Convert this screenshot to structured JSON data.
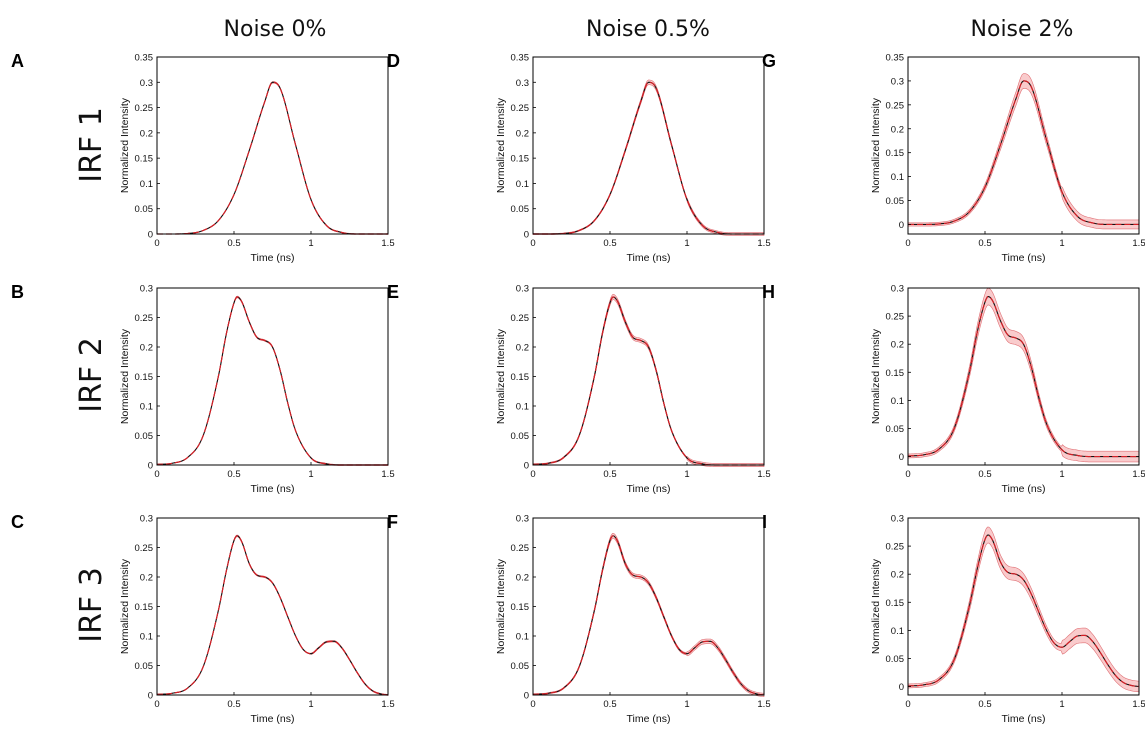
{
  "column_titles": [
    "Noise 0%",
    "Noise 0.5%",
    "Noise 2%"
  ],
  "row_titles": [
    "IRF 1",
    "IRF 2",
    "IRF 3"
  ],
  "chart_data": [
    {
      "panel": "A",
      "type": "line",
      "xlabel": "Time (ns)",
      "ylabel": "Normalized Intensity",
      "xlim": [
        0,
        1.5
      ],
      "ylim": [
        0,
        0.35
      ],
      "xticks": [
        "0",
        "0.5",
        "1",
        "1.5"
      ],
      "yticks": [
        "0",
        "0.05",
        "0.1",
        "0.15",
        "0.2",
        "0.25",
        "0.3",
        "0.35"
      ],
      "x": [
        0,
        0.1,
        0.2,
        0.3,
        0.4,
        0.5,
        0.6,
        0.7,
        0.75,
        0.8,
        0.9,
        1.0,
        1.1,
        1.2,
        1.3,
        1.4,
        1.5
      ],
      "y": [
        0,
        0,
        0.001,
        0.007,
        0.027,
        0.078,
        0.166,
        0.262,
        0.3,
        0.288,
        0.176,
        0.068,
        0.017,
        0.003,
        0,
        0,
        0
      ],
      "band_halfwidth": 0.001
    },
    {
      "panel": "B",
      "type": "line",
      "xlabel": "Time (ns)",
      "ylabel": "Normalized Intensity",
      "xlim": [
        0,
        1.5
      ],
      "ylim": [
        0,
        0.3
      ],
      "xticks": [
        "0",
        "0.5",
        "1",
        "1.5"
      ],
      "yticks": [
        "0",
        "0.05",
        "0.1",
        "0.15",
        "0.2",
        "0.25",
        "0.3"
      ],
      "x": [
        0,
        0.1,
        0.2,
        0.3,
        0.4,
        0.45,
        0.5,
        0.52,
        0.55,
        0.6,
        0.65,
        0.7,
        0.75,
        0.8,
        0.85,
        0.9,
        1.0,
        1.1,
        1.2,
        1.3,
        1.4,
        1.5
      ],
      "y": [
        0.001,
        0.003,
        0.013,
        0.05,
        0.152,
        0.222,
        0.275,
        0.285,
        0.277,
        0.242,
        0.216,
        0.211,
        0.2,
        0.16,
        0.104,
        0.058,
        0.012,
        0.002,
        0,
        0,
        0,
        0
      ],
      "band_halfwidth": 0.001
    },
    {
      "panel": "C",
      "type": "line",
      "xlabel": "Time (ns)",
      "ylabel": "Normalized Intensity",
      "xlim": [
        0,
        1.5
      ],
      "ylim": [
        0,
        0.3
      ],
      "xticks": [
        "0",
        "0.5",
        "1",
        "1.5"
      ],
      "yticks": [
        "0",
        "0.05",
        "0.1",
        "0.15",
        "0.2",
        "0.25",
        "0.3"
      ],
      "x": [
        0,
        0.1,
        0.2,
        0.3,
        0.4,
        0.45,
        0.5,
        0.52,
        0.55,
        0.6,
        0.65,
        0.7,
        0.75,
        0.8,
        0.85,
        0.9,
        0.95,
        1.0,
        1.05,
        1.1,
        1.15,
        1.2,
        1.25,
        1.3,
        1.35,
        1.4,
        1.45,
        1.5
      ],
      "y": [
        0.001,
        0.003,
        0.012,
        0.048,
        0.145,
        0.21,
        0.262,
        0.27,
        0.26,
        0.222,
        0.203,
        0.2,
        0.19,
        0.165,
        0.132,
        0.1,
        0.077,
        0.07,
        0.08,
        0.09,
        0.091,
        0.08,
        0.06,
        0.038,
        0.019,
        0.007,
        0.002,
        0
      ],
      "band_halfwidth": 0.001
    },
    {
      "panel": "D",
      "type": "line",
      "xlabel": "Time (ns)",
      "ylabel": "Normalized Intensity",
      "xlim": [
        0,
        1.5
      ],
      "ylim": [
        0,
        0.35
      ],
      "xticks": [
        "0",
        "0.5",
        "1",
        "1.5"
      ],
      "yticks": [
        "0",
        "0.05",
        "0.1",
        "0.15",
        "0.2",
        "0.25",
        "0.3",
        "0.35"
      ],
      "x": [
        0,
        0.1,
        0.2,
        0.3,
        0.4,
        0.5,
        0.6,
        0.7,
        0.75,
        0.8,
        0.9,
        1.0,
        1.1,
        1.2,
        1.3,
        1.4,
        1.5
      ],
      "y": [
        0,
        0,
        0.001,
        0.007,
        0.027,
        0.078,
        0.166,
        0.262,
        0.3,
        0.288,
        0.176,
        0.068,
        0.017,
        0.003,
        0,
        0,
        0
      ],
      "band_halfwidth": 0.003
    },
    {
      "panel": "E",
      "type": "line",
      "xlabel": "Time (ns)",
      "ylabel": "Normalized Intensity",
      "xlim": [
        0,
        1.5
      ],
      "ylim": [
        0,
        0.3
      ],
      "xticks": [
        "0",
        "0.5",
        "1",
        "1.5"
      ],
      "yticks": [
        "0",
        "0.05",
        "0.1",
        "0.15",
        "0.2",
        "0.25",
        "0.3"
      ],
      "x": [
        0,
        0.1,
        0.2,
        0.3,
        0.4,
        0.45,
        0.5,
        0.52,
        0.55,
        0.6,
        0.65,
        0.7,
        0.75,
        0.8,
        0.85,
        0.9,
        1.0,
        1.1,
        1.2,
        1.3,
        1.4,
        1.5
      ],
      "y": [
        0.001,
        0.003,
        0.013,
        0.05,
        0.152,
        0.222,
        0.275,
        0.285,
        0.277,
        0.242,
        0.216,
        0.211,
        0.2,
        0.16,
        0.104,
        0.058,
        0.012,
        0.002,
        0,
        0,
        0,
        0
      ],
      "band_halfwidth": 0.003
    },
    {
      "panel": "F",
      "type": "line",
      "xlabel": "Time (ns)",
      "ylabel": "Normalized Intensity",
      "xlim": [
        0,
        1.5
      ],
      "ylim": [
        0,
        0.3
      ],
      "xticks": [
        "0",
        "0.5",
        "1",
        "1.5"
      ],
      "yticks": [
        "0",
        "0.05",
        "0.1",
        "0.15",
        "0.2",
        "0.25",
        "0.3"
      ],
      "x": [
        0,
        0.1,
        0.2,
        0.3,
        0.4,
        0.45,
        0.5,
        0.52,
        0.55,
        0.6,
        0.65,
        0.7,
        0.75,
        0.8,
        0.85,
        0.9,
        0.95,
        1.0,
        1.05,
        1.1,
        1.15,
        1.2,
        1.25,
        1.3,
        1.35,
        1.4,
        1.45,
        1.5
      ],
      "y": [
        0.001,
        0.003,
        0.012,
        0.048,
        0.145,
        0.21,
        0.262,
        0.27,
        0.26,
        0.222,
        0.203,
        0.2,
        0.19,
        0.165,
        0.132,
        0.1,
        0.077,
        0.07,
        0.08,
        0.09,
        0.091,
        0.08,
        0.06,
        0.038,
        0.019,
        0.007,
        0.002,
        0
      ],
      "band_halfwidth": 0.003
    },
    {
      "panel": "G",
      "type": "line",
      "xlabel": "Time (ns)",
      "ylabel": "Normalized Intensity",
      "xlim": [
        0,
        1.5
      ],
      "ylim": [
        -0.02,
        0.35
      ],
      "xticks": [
        "0",
        "0.5",
        "1",
        "1.5"
      ],
      "yticks": [
        "0",
        "0.05",
        "0.1",
        "0.15",
        "0.2",
        "0.25",
        "0.3",
        "0.35"
      ],
      "x": [
        0,
        0.1,
        0.2,
        0.3,
        0.4,
        0.5,
        0.6,
        0.7,
        0.75,
        0.8,
        0.9,
        1.0,
        1.1,
        1.2,
        1.3,
        1.4,
        1.5
      ],
      "y": [
        0,
        0,
        0.001,
        0.007,
        0.027,
        0.078,
        0.166,
        0.262,
        0.3,
        0.288,
        0.176,
        0.068,
        0.017,
        0.003,
        0,
        0,
        0
      ],
      "band_halfwidth": 0.01
    },
    {
      "panel": "H",
      "type": "line",
      "xlabel": "Time (ns)",
      "ylabel": "Normalized Intensity",
      "xlim": [
        0,
        1.5
      ],
      "ylim": [
        -0.015,
        0.3
      ],
      "xticks": [
        "0",
        "0.5",
        "1",
        "1.5"
      ],
      "yticks": [
        "0",
        "0.05",
        "0.1",
        "0.15",
        "0.2",
        "0.25",
        "0.3"
      ],
      "x": [
        0,
        0.1,
        0.2,
        0.3,
        0.4,
        0.45,
        0.5,
        0.52,
        0.55,
        0.6,
        0.65,
        0.7,
        0.75,
        0.8,
        0.85,
        0.9,
        1.0,
        1.1,
        1.2,
        1.3,
        1.4,
        1.5
      ],
      "y": [
        0.001,
        0.003,
        0.013,
        0.05,
        0.152,
        0.222,
        0.275,
        0.285,
        0.277,
        0.242,
        0.216,
        0.211,
        0.2,
        0.16,
        0.104,
        0.058,
        0.012,
        0.002,
        0,
        0,
        0,
        0
      ],
      "band_halfwidth": 0.01
    },
    {
      "panel": "I",
      "type": "line",
      "xlabel": "Time (ns)",
      "ylabel": "Normalized Intensity",
      "xlim": [
        0,
        1.5
      ],
      "ylim": [
        -0.015,
        0.3
      ],
      "xticks": [
        "0",
        "0.5",
        "1",
        "1.5"
      ],
      "yticks": [
        "0",
        "0.05",
        "0.1",
        "0.15",
        "0.2",
        "0.25",
        "0.3"
      ],
      "x": [
        0,
        0.1,
        0.2,
        0.3,
        0.4,
        0.45,
        0.5,
        0.52,
        0.55,
        0.6,
        0.65,
        0.7,
        0.75,
        0.8,
        0.85,
        0.9,
        0.95,
        1.0,
        1.05,
        1.1,
        1.15,
        1.2,
        1.25,
        1.3,
        1.35,
        1.4,
        1.45,
        1.5
      ],
      "y": [
        0.001,
        0.003,
        0.012,
        0.048,
        0.145,
        0.21,
        0.262,
        0.27,
        0.26,
        0.222,
        0.203,
        0.2,
        0.19,
        0.165,
        0.132,
        0.1,
        0.077,
        0.07,
        0.08,
        0.09,
        0.091,
        0.08,
        0.06,
        0.038,
        0.019,
        0.007,
        0.002,
        0
      ],
      "band_halfwidth": 0.01
    }
  ]
}
